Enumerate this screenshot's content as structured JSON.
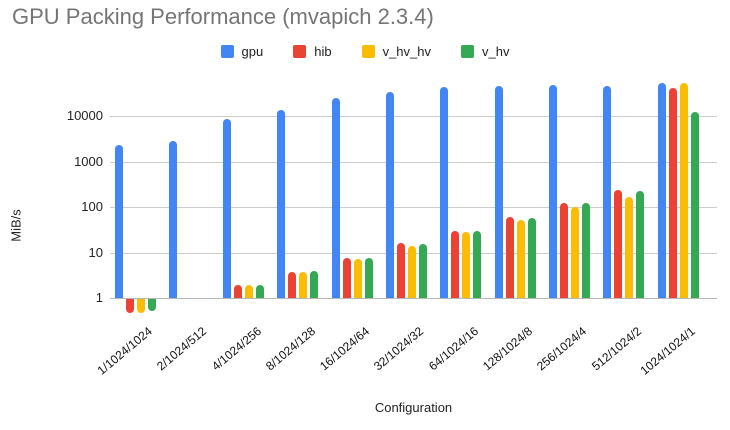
{
  "title": "GPU Packing Performance (mvapich 2.3.4)",
  "chart_data": {
    "type": "bar",
    "title": "GPU Packing Performance (mvapich 2.3.4)",
    "xlabel": "Configuration",
    "ylabel": "MiB/s",
    "y_scale": "log",
    "ylim": [
      0.4,
      70000
    ],
    "yticks": [
      1,
      10,
      100,
      1000,
      10000
    ],
    "grid": true,
    "legend_position": "top",
    "categories": [
      "1/1024/1024",
      "2/1024/512",
      "4/1024/256",
      "8/1024/128",
      "16/1024/64",
      "32/1024/32",
      "64/1024/16",
      "128/1024/8",
      "256/1024/4",
      "512/1024/2",
      "1024/1024/1"
    ],
    "series": [
      {
        "name": "gpu",
        "color": "#4285F4",
        "values": [
          2300,
          2800,
          8500,
          13500,
          25000,
          34000,
          43000,
          45000,
          48000,
          45000,
          52000
        ]
      },
      {
        "name": "hib",
        "color": "#EA4335",
        "values": [
          0.5,
          null,
          1.9,
          3.7,
          7.4,
          16,
          30,
          60,
          120,
          240,
          42000
        ]
      },
      {
        "name": "v_hv_hv",
        "color": "#FBBC04",
        "values": [
          0.5,
          null,
          1.9,
          3.7,
          7.2,
          14,
          28,
          52,
          100,
          165,
          54000
        ]
      },
      {
        "name": "v_hv",
        "color": "#34A853",
        "values": [
          0.55,
          null,
          1.95,
          3.9,
          7.4,
          15,
          30,
          58,
          120,
          225,
          12500
        ]
      }
    ]
  }
}
